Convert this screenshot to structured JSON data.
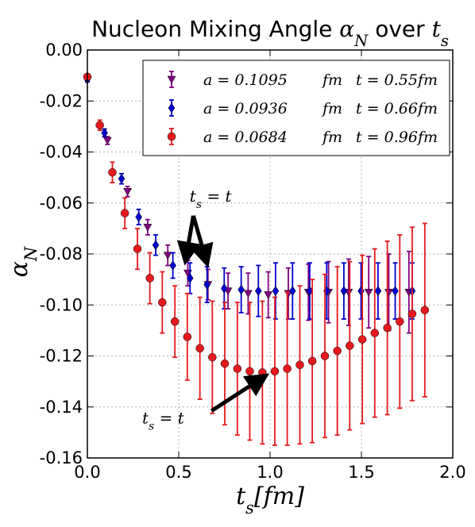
{
  "chart_data": {
    "type": "scatter",
    "title_text": "Nucleon Mixing Angle ",
    "title_math_main": "α",
    "title_math_sub": "N",
    "title_mid": " over ",
    "title_math2_main": "t",
    "title_math2_sub": "s",
    "xlabel": "t_s[fm]",
    "ylabel": "α_N",
    "xlim": [
      0.0,
      2.0
    ],
    "ylim": [
      -0.16,
      0.0
    ],
    "xticks": [
      "0.0",
      "0.5",
      "1.0",
      "1.5",
      "2.0"
    ],
    "yticks": [
      "0.00",
      "-0.02",
      "-0.04",
      "-0.06",
      "-0.08",
      "-0.10",
      "-0.12",
      "-0.14",
      "-0.16"
    ],
    "grid": true,
    "legend_position": "top-right",
    "series": [
      {
        "name": "a = 0.1095  fm      t = 0.55fm",
        "color": "#800080",
        "marker": "triangle-down",
        "x": [
          0.0,
          0.11,
          0.22,
          0.33,
          0.44,
          0.55,
          0.66,
          0.77,
          0.88,
          0.99,
          1.1,
          1.21,
          1.32,
          1.43,
          1.54,
          1.65,
          1.76
        ],
        "y": [
          -0.0115,
          -0.0355,
          -0.0555,
          -0.0695,
          -0.0805,
          -0.0875,
          -0.092,
          -0.0945,
          -0.0955,
          -0.096,
          -0.0955,
          -0.095,
          -0.095,
          -0.095,
          -0.095,
          -0.095,
          -0.095
        ],
        "err": [
          0.001,
          0.0015,
          0.002,
          0.003,
          0.004,
          0.005,
          0.006,
          0.007,
          0.008,
          0.009,
          0.01,
          0.011,
          0.012,
          0.013,
          0.014,
          0.015,
          0.016
        ]
      },
      {
        "name": "a = 0.0936  fm      t = 0.66fm",
        "color": "#0000cd",
        "marker": "diamond",
        "x": [
          0.0,
          0.094,
          0.187,
          0.281,
          0.374,
          0.468,
          0.562,
          0.655,
          0.749,
          0.842,
          0.936,
          1.03,
          1.123,
          1.217,
          1.31,
          1.404,
          1.498,
          1.591,
          1.685,
          1.778
        ],
        "y": [
          -0.0115,
          -0.0325,
          -0.0505,
          -0.0655,
          -0.0765,
          -0.0845,
          -0.0895,
          -0.092,
          -0.0935,
          -0.094,
          -0.0945,
          -0.0945,
          -0.0945,
          -0.0945,
          -0.0945,
          -0.0945,
          -0.0945,
          -0.0945,
          -0.0945,
          -0.0945
        ],
        "err": [
          0.001,
          0.0015,
          0.002,
          0.003,
          0.004,
          0.005,
          0.006,
          0.007,
          0.008,
          0.009,
          0.01,
          0.011,
          0.011,
          0.011,
          0.011,
          0.011,
          0.011,
          0.011,
          0.011,
          0.011
        ]
      },
      {
        "name": "a = 0.0684  fm      t = 0.96fm",
        "color": "#e41a1c",
        "marker": "circle",
        "x": [
          0.0,
          0.068,
          0.137,
          0.205,
          0.274,
          0.342,
          0.41,
          0.479,
          0.547,
          0.616,
          0.684,
          0.752,
          0.821,
          0.889,
          0.958,
          1.026,
          1.094,
          1.163,
          1.231,
          1.3,
          1.368,
          1.436,
          1.505,
          1.573,
          1.642,
          1.71,
          1.778,
          1.847
        ],
        "y": [
          -0.0105,
          -0.0295,
          -0.048,
          -0.064,
          -0.078,
          -0.0895,
          -0.099,
          -0.1065,
          -0.1125,
          -0.117,
          -0.1205,
          -0.123,
          -0.125,
          -0.126,
          -0.1265,
          -0.126,
          -0.125,
          -0.1235,
          -0.122,
          -0.12,
          -0.118,
          -0.116,
          -0.1135,
          -0.111,
          -0.109,
          -0.1065,
          -0.1035,
          -0.102
        ],
        "err": [
          0.001,
          0.002,
          0.004,
          0.006,
          0.008,
          0.01,
          0.012,
          0.014,
          0.017,
          0.02,
          0.022,
          0.024,
          0.026,
          0.027,
          0.028,
          0.029,
          0.03,
          0.031,
          0.032,
          0.032,
          0.033,
          0.033,
          0.033,
          0.033,
          0.034,
          0.034,
          0.034,
          0.034
        ]
      }
    ],
    "legend_entries": [
      {
        "a_label": "a = 0.1095",
        "a_unit": "fm",
        "t_label": "t = 0.55fm"
      },
      {
        "a_label": "a = 0.0936",
        "a_unit": "fm",
        "t_label": "t = 0.66fm"
      },
      {
        "a_label": "a = 0.0684",
        "a_unit": "fm",
        "t_label": "t = 0.96fm"
      }
    ],
    "annotations": [
      {
        "text": "t_s = t",
        "text_x": 0.56,
        "text_y": -0.0595,
        "arrow_from": [
          0.58,
          -0.065
        ],
        "arrow_to": [
          [
            0.54,
            -0.0815
          ],
          [
            0.65,
            -0.0825
          ]
        ]
      },
      {
        "text": "t_s = t",
        "text_x": 0.3,
        "text_y": -0.1465,
        "arrow_from": [
          0.68,
          -0.1415
        ],
        "arrow_to": [
          [
            0.96,
            -0.1285
          ]
        ]
      }
    ]
  }
}
